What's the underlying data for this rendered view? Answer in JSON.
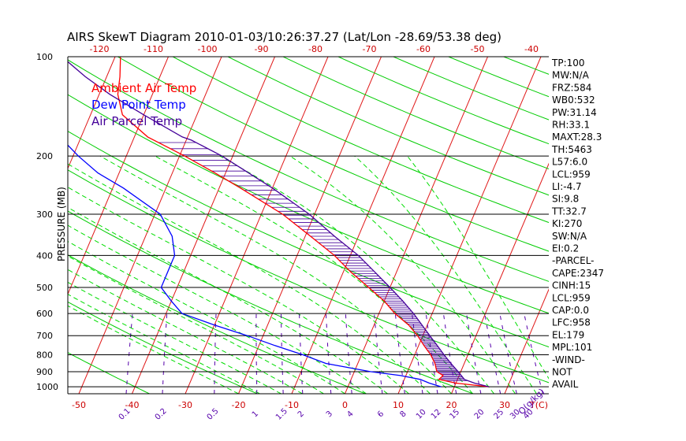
{
  "chart_data": {
    "type": "skew-t",
    "title": "AIRS SkewT Diagram 2010-01-03/10:26:37.27 (Lat/Lon -28.69/53.38 deg)",
    "ylabel": "PRESSURE (MB)",
    "pressure_ticks": [
      100,
      200,
      300,
      400,
      500,
      600,
      700,
      800,
      900,
      1000
    ],
    "top_temp_ticks": [
      -120,
      -110,
      -100,
      -90,
      -80,
      -70,
      -60,
      -50,
      -40
    ],
    "bottom_temp_ticks": [
      -50,
      -40,
      -30,
      -20,
      -10,
      0,
      10,
      20,
      30
    ],
    "bottom_temp_unit": "T(C)",
    "mixing_ratio_ticks": [
      "0.1",
      "0.2",
      "0.5",
      "1",
      "1.5",
      "2",
      "3",
      "4",
      "6",
      "8",
      "10",
      "12",
      "15",
      "20",
      "25",
      "30",
      "40"
    ],
    "mixing_ratio_unit": "Q(g/kg)",
    "legend": [
      {
        "name": "Ambient Air Temp",
        "color": "#ff0000"
      },
      {
        "name": "Dew Point Temp",
        "color": "#0000ff"
      },
      {
        "name": "Air Parcel Temp",
        "color": "#440099"
      }
    ],
    "isotherm_color": "#e01818",
    "dry_adiabat_color": "#00cc00",
    "moist_adiabat_color": "#00dd00",
    "mixing_ratio_color": "#5500aa",
    "series": [
      {
        "name": "Ambient Air Temp",
        "color": "#ff0000",
        "points": [
          {
            "p": 1000,
            "t": 26.5
          },
          {
            "p": 975,
            "t": 20
          },
          {
            "p": 950,
            "t": 16.5
          },
          {
            "p": 925,
            "t": 17
          },
          {
            "p": 900,
            "t": 15.5
          },
          {
            "p": 850,
            "t": 14.5
          },
          {
            "p": 800,
            "t": 13
          },
          {
            "p": 750,
            "t": 11
          },
          {
            "p": 700,
            "t": 9
          },
          {
            "p": 650,
            "t": 6.5
          },
          {
            "p": 600,
            "t": 3
          },
          {
            "p": 550,
            "t": 0
          },
          {
            "p": 500,
            "t": -4
          },
          {
            "p": 450,
            "t": -8.5
          },
          {
            "p": 400,
            "t": -13
          },
          {
            "p": 350,
            "t": -19
          },
          {
            "p": 300,
            "t": -26
          },
          {
            "p": 250,
            "t": -36
          },
          {
            "p": 225,
            "t": -42
          },
          {
            "p": 200,
            "t": -49
          },
          {
            "p": 175,
            "t": -57.5
          },
          {
            "p": 150,
            "t": -64
          },
          {
            "p": 130,
            "t": -66.5
          },
          {
            "p": 115,
            "t": -67.5
          },
          {
            "p": 100,
            "t": -69
          }
        ]
      },
      {
        "name": "Dew Point Temp",
        "color": "#0000ff",
        "points": [
          {
            "p": 1000,
            "t": 17.5
          },
          {
            "p": 975,
            "t": 15
          },
          {
            "p": 950,
            "t": 13
          },
          {
            "p": 925,
            "t": 9
          },
          {
            "p": 900,
            "t": 3
          },
          {
            "p": 850,
            "t": -6
          },
          {
            "p": 800,
            "t": -11
          },
          {
            "p": 750,
            "t": -17
          },
          {
            "p": 700,
            "t": -23
          },
          {
            "p": 650,
            "t": -30
          },
          {
            "p": 600,
            "t": -37
          },
          {
            "p": 550,
            "t": -40
          },
          {
            "p": 500,
            "t": -43
          },
          {
            "p": 450,
            "t": -43
          },
          {
            "p": 400,
            "t": -43
          },
          {
            "p": 350,
            "t": -45
          },
          {
            "p": 300,
            "t": -49
          },
          {
            "p": 250,
            "t": -58
          },
          {
            "p": 225,
            "t": -64
          },
          {
            "p": 200,
            "t": -69
          },
          {
            "p": 175,
            "t": -74
          },
          {
            "p": 150,
            "t": -81
          },
          {
            "p": 130,
            "t": -85
          },
          {
            "p": 115,
            "t": -87
          },
          {
            "p": 100,
            "t": -89
          }
        ]
      },
      {
        "name": "Air Parcel Temp",
        "color": "#440099",
        "points": [
          {
            "p": 1000,
            "t": 26.5
          },
          {
            "p": 975,
            "t": 23.5
          },
          {
            "p": 950,
            "t": 21.3
          },
          {
            "p": 900,
            "t": 19.5
          },
          {
            "p": 850,
            "t": 17.5
          },
          {
            "p": 800,
            "t": 15.5
          },
          {
            "p": 750,
            "t": 13.5
          },
          {
            "p": 700,
            "t": 11.3
          },
          {
            "p": 650,
            "t": 9
          },
          {
            "p": 600,
            "t": 6.5
          },
          {
            "p": 550,
            "t": 3.5
          },
          {
            "p": 500,
            "t": 0
          },
          {
            "p": 450,
            "t": -4
          },
          {
            "p": 400,
            "t": -8.5
          },
          {
            "p": 350,
            "t": -14.5
          },
          {
            "p": 300,
            "t": -21
          },
          {
            "p": 250,
            "t": -30
          },
          {
            "p": 200,
            "t": -42
          },
          {
            "p": 179,
            "t": -49
          },
          {
            "p": 175,
            "t": -51
          },
          {
            "p": 150,
            "t": -60
          },
          {
            "p": 130,
            "t": -68
          },
          {
            "p": 115,
            "t": -74
          },
          {
            "p": 100,
            "t": -80
          }
        ]
      }
    ],
    "cape_hatch": {
      "from_p": 958,
      "to_p": 179,
      "color": "#440099"
    },
    "indices": [
      "TP:100",
      "MW:N/A",
      "FRZ:584",
      "WB0:532",
      "PW:31.14",
      "RH:33.1",
      "MAXT:28.3",
      "TH:5463",
      "L57:6.0",
      "LCL:959",
      "LI:-4.7",
      "SI:9.8",
      "TT:32.7",
      "KI:270",
      "SW:N/A",
      "EI:0.2",
      "-PARCEL-",
      "CAPE:2347",
      "CINH:15",
      "LCL:959",
      "CAP:0.0",
      "LFC:958",
      "EL:179",
      "MPL:101",
      "-WIND-",
      "NOT",
      "AVAIL"
    ]
  }
}
